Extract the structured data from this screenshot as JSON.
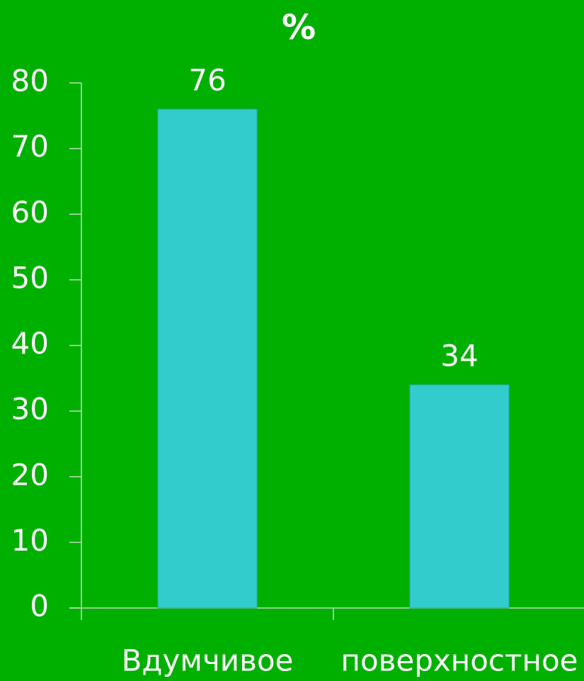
{
  "chart_data": {
    "type": "bar",
    "title": "%",
    "categories": [
      "Вдумчивое",
      "поверхностное"
    ],
    "values": [
      76,
      34
    ],
    "color": "#33cccc",
    "ylim": [
      0,
      80
    ],
    "yticks": [
      0,
      10,
      20,
      30,
      40,
      50,
      60,
      70,
      80
    ],
    "grid": false
  }
}
